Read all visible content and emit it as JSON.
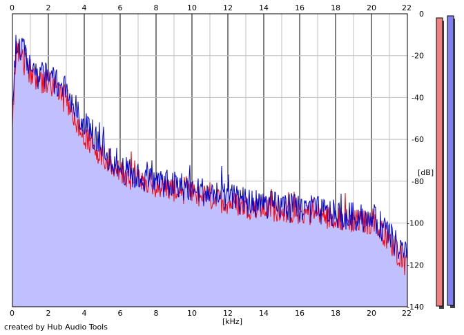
{
  "chart_data": {
    "type": "area",
    "title": "",
    "xlabel": "[kHz]",
    "ylabel": "[dB]",
    "xlim": [
      0,
      22
    ],
    "ylim": [
      -140,
      0
    ],
    "x_ticks": [
      0,
      2,
      4,
      6,
      8,
      10,
      12,
      14,
      16,
      18,
      20,
      22
    ],
    "y_ticks": [
      0,
      -20,
      -40,
      -60,
      -80,
      -100,
      -120,
      -140
    ],
    "grid": true,
    "legend": "none",
    "colors": {
      "fill": "#c0c0ff",
      "left_channel": "#ff0000",
      "right_channel": "#0000cc",
      "grid_minor": "#c0c0c0",
      "grid_major": "#808080",
      "meter_left": "#f08080",
      "meter_right": "#8080f0"
    },
    "series": [
      {
        "values_x": [
          0,
          0.2,
          0.5,
          0.8,
          1.0,
          1.5,
          2.0,
          2.5,
          3.0,
          3.5,
          4.0,
          5.0,
          6.0,
          7.0,
          8.0,
          9.0,
          10.0,
          11.0,
          12.0,
          13.0,
          14.0,
          15.0,
          16.0,
          17.0,
          18.0,
          19.0,
          20.0,
          20.5,
          21.0,
          21.5,
          22.0
        ],
        "values_y": [
          -50,
          -18,
          -22,
          -25,
          -28,
          -32,
          -33,
          -36,
          -40,
          -52,
          -58,
          -68,
          -76,
          -80,
          -82,
          -84,
          -86,
          -88,
          -90,
          -92,
          -93,
          -94,
          -95,
          -96,
          -98,
          -99,
          -100,
          -103,
          -108,
          -115,
          -117
        ]
      },
      {
        "values_x": [
          0,
          0.2,
          0.5,
          0.8,
          1.0,
          1.5,
          2.0,
          2.5,
          3.0,
          3.5,
          4.0,
          5.0,
          6.0,
          7.0,
          8.0,
          9.0,
          10.0,
          11.0,
          12.0,
          13.0,
          14.0,
          15.0,
          16.0,
          17.0,
          18.0,
          19.0,
          20.0,
          20.5,
          21.0,
          21.5,
          22.0
        ],
        "values_y": [
          -45,
          -15,
          -18,
          -20,
          -28,
          -30,
          -30,
          -33,
          -36,
          -45,
          -53,
          -65,
          -74,
          -78,
          -80,
          -82,
          -83,
          -86,
          -88,
          -90,
          -91,
          -92,
          -93,
          -94,
          -96,
          -97,
          -98,
          -101,
          -106,
          -112,
          -116
        ]
      }
    ],
    "meters": {
      "left_level": 0.98,
      "right_level": 0.99
    },
    "credit": "created by Hub Audio Tools"
  }
}
